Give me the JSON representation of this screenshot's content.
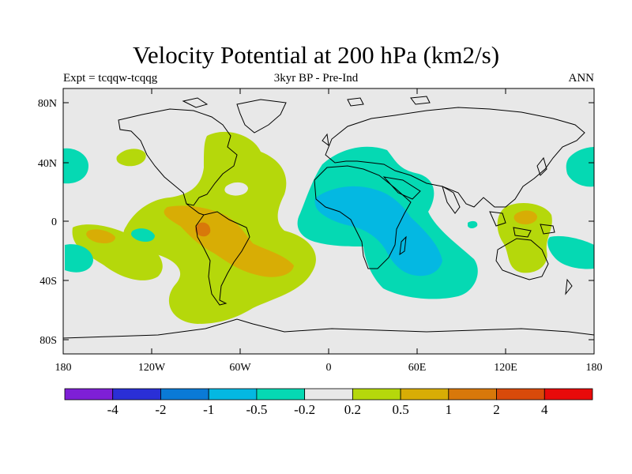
{
  "title": "Velocity Potential at 200 hPa (km2/s)",
  "subtitle_left": "Expt = tcqqw-tcqqg",
  "subtitle_center": "3kyr BP - Pre-Ind",
  "subtitle_right": "ANN",
  "x_ticks": [
    "180",
    "120W",
    "60W",
    "0",
    "60E",
    "120E",
    "180"
  ],
  "y_ticks": [
    "80N",
    "40N",
    "0",
    "40S",
    "80S"
  ],
  "colorbar": {
    "colors": [
      "#7e1fd6",
      "#2a2fd6",
      "#0a7ad6",
      "#04b8e2",
      "#05d9b3",
      "#e8e8e8",
      "#b5d80b",
      "#d8ad05",
      "#d8780a",
      "#d94a0a",
      "#e80a0a"
    ],
    "labels": [
      "-4",
      "-2",
      "-1",
      "-0.5",
      "-0.2",
      "0.2",
      "0.5",
      "1",
      "2",
      "4"
    ]
  },
  "colors": {
    "land_line": "#000000",
    "ocean_fill": "#e8e8e8"
  }
}
